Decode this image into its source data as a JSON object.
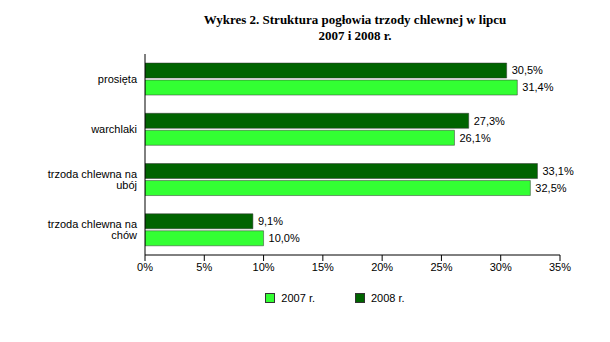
{
  "chart_data": {
    "type": "bar",
    "title": "Wykres 2. Struktura  pogłowia trzody chlewnej w lipcu\n2007 i 2008 r.",
    "orientation": "horizontal",
    "categories": [
      "prosięta",
      "warchlaki",
      "trzoda chlewna na ubój",
      "trzoda chlewna na chów"
    ],
    "series": [
      {
        "name": "2007 r.",
        "color": "#33ff33",
        "values": [
          31.4,
          26.1,
          32.5,
          10.0
        ],
        "value_labels": [
          "31,4%",
          "26,1%",
          "32,5%",
          "10,0%"
        ]
      },
      {
        "name": "2008 r.",
        "color": "#006400",
        "values": [
          30.5,
          27.3,
          33.1,
          9.1
        ],
        "value_labels": [
          "30,5%",
          "27,3%",
          "33,1%",
          "9,1%"
        ]
      }
    ],
    "xlim": [
      0,
      35
    ],
    "xticks": [
      {
        "value": 0,
        "label": "0%"
      },
      {
        "value": 5,
        "label": "5%"
      },
      {
        "value": 10,
        "label": "10%"
      },
      {
        "value": 15,
        "label": "15%"
      },
      {
        "value": 20,
        "label": "20%"
      },
      {
        "value": 25,
        "label": "25%"
      },
      {
        "value": 30,
        "label": "30%"
      },
      {
        "value": 35,
        "label": "35%"
      }
    ],
    "grid": false,
    "data_labels": true,
    "legend": "bottom"
  }
}
